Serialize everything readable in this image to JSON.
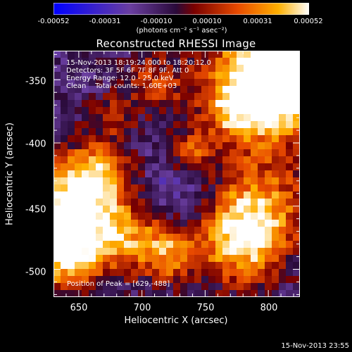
{
  "colorbar": {
    "ticks": [
      "-0.00052",
      "-0.00031",
      "-0.00010",
      "0.00010",
      "0.00031",
      "0.00052"
    ],
    "units_label": "(photons cm⁻² s⁻¹ asec⁻²)",
    "colors": [
      "#0000ff",
      "#6a3ea0",
      "#2a0a3a",
      "#7a0000",
      "#e84a00",
      "#ffb000",
      "#ffffff"
    ]
  },
  "title": "Reconstructed RHESSI Image",
  "info": {
    "time_range": "15-Nov-2013 18:19:24.000 to 18:20:12.0",
    "detectors": "Detectors: 3F 5F 6F 7F 8F 9F, Att 0",
    "energy_range": "Energy Range: 12.0 - 25.0 keV",
    "clean_counts": "Clean    Total counts: 1.60E+03"
  },
  "peak_label": "Position of Peak = [629,-488]",
  "axes": {
    "xlabel": "Heliocentric X (arcsec)",
    "ylabel": "Heliocentric Y (arcsec)",
    "xticks": [
      "650",
      "700",
      "750",
      "800"
    ],
    "yticks": [
      "-350",
      "-400",
      "-450",
      "-500"
    ],
    "xlim": [
      630,
      825
    ],
    "ylim": [
      -522,
      -327
    ]
  },
  "footer_timestamp": "15-Nov-2013 23:55"
}
